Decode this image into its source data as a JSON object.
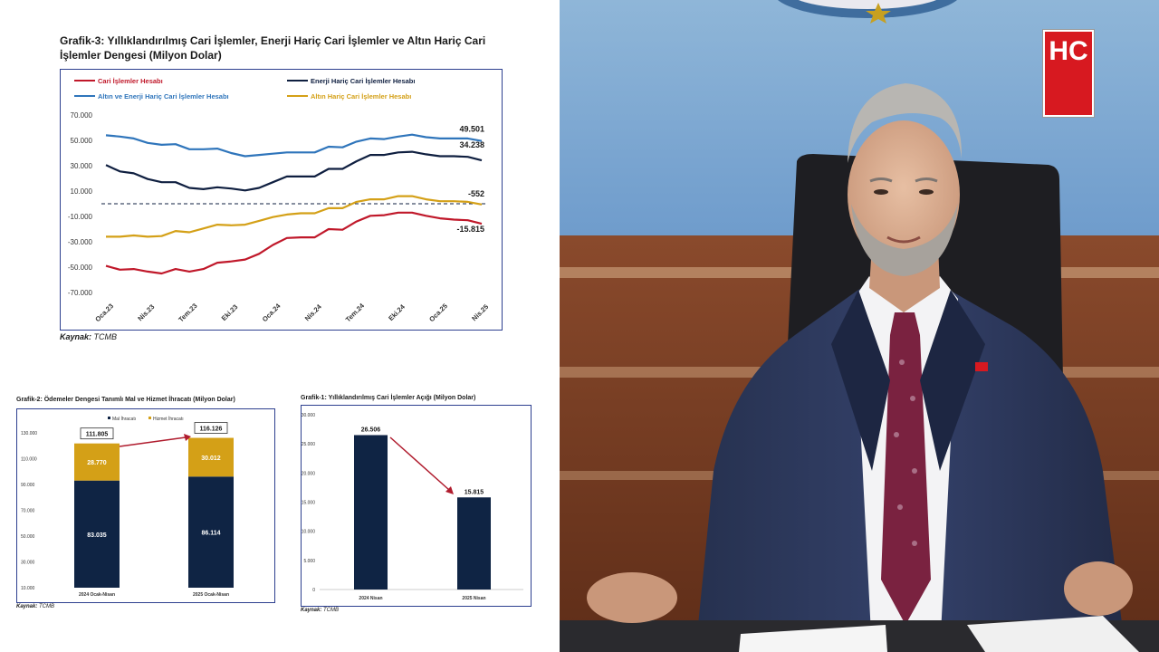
{
  "source_label": "Kaynak:",
  "source_value": "TCMB",
  "logo_text": "HC",
  "chart_data": [
    {
      "type": "line",
      "title": "Grafik-3: Yıllıklandırılmış Cari İşlemler, Enerji Hariç Cari İşlemler ve Altın Hariç Cari İşlemler Dengesi (Milyon Dolar)",
      "x_tick_labels": [
        "Oca.23",
        "Nis.23",
        "Tem.23",
        "Eki.23",
        "Oca.24",
        "Nis.24",
        "Tem.24",
        "Eki.24",
        "Oca.25",
        "Nis.25"
      ],
      "y_tick_labels": [
        "70.000",
        "50.000",
        "30.000",
        "10.000",
        "-10.000",
        "-30.000",
        "-50.000",
        "-70.000"
      ],
      "ylim": [
        -70000,
        70000
      ],
      "legend_position": "top",
      "series": [
        {
          "name": "Cari İşlemler Hesabı",
          "color": "#c0182a",
          "values": [
            -49000,
            -52000,
            -51500,
            -53500,
            -55000,
            -51500,
            -53500,
            -51500,
            -46500,
            -45500,
            -44000,
            -39500,
            -32500,
            -27000,
            -26500,
            -26500,
            -20000,
            -20500,
            -14000,
            -9500,
            -9000,
            -7000,
            -7000,
            -9500,
            -11500,
            -12500,
            -13000,
            -15815
          ],
          "end_label": "-15.815"
        },
        {
          "name": "Enerji Hariç Cari İşlemler Hesabı",
          "color": "#0f1f40",
          "values": [
            30500,
            25500,
            24000,
            19500,
            17000,
            17000,
            12500,
            11500,
            13000,
            12000,
            10500,
            12500,
            17000,
            21500,
            21500,
            21500,
            27500,
            27500,
            33500,
            38500,
            38500,
            40500,
            41000,
            39000,
            37500,
            37500,
            37000,
            34238
          ],
          "end_label": "34.238"
        },
        {
          "name": "Altın ve Enerji Hariç Cari İşlemler Hesabı",
          "color": "#2f75bb",
          "values": [
            54000,
            53000,
            51500,
            48000,
            46500,
            47000,
            43000,
            43000,
            43500,
            40000,
            37500,
            38500,
            39500,
            40500,
            40500,
            40500,
            45000,
            44500,
            49000,
            51500,
            51000,
            53000,
            54500,
            52500,
            51500,
            51500,
            51500,
            49501
          ],
          "end_label": "49.501"
        },
        {
          "name": "Altın Hariç Cari İşlemler Hesabı",
          "color": "#d4a017",
          "values": [
            -26000,
            -26000,
            -25000,
            -26000,
            -25500,
            -21500,
            -22500,
            -19500,
            -16500,
            -17000,
            -16500,
            -13500,
            -10500,
            -8500,
            -7500,
            -7500,
            -3500,
            -3500,
            1500,
            3500,
            3500,
            6000,
            6000,
            3500,
            2000,
            2000,
            1500,
            -552
          ],
          "end_label": "-552"
        }
      ]
    },
    {
      "type": "bar",
      "title": "Grafik-2: Ödemeler Dengesi Tanımlı Mal ve Hizmet İhracatı (Milyon Dolar)",
      "categories": [
        "2024 Ocak-Nisan",
        "2025 Ocak-Nisan"
      ],
      "y_tick_labels": [
        "130.000",
        "110.000",
        "90.000",
        "70.000",
        "50.000",
        "30.000",
        "10.000"
      ],
      "ylim": [
        10000,
        130000
      ],
      "legend_position": "top",
      "series": [
        {
          "name": "Mal İhracatı",
          "color": "#0f2444",
          "values": [
            83035,
            86114
          ],
          "labels": [
            "83.035",
            "86.114"
          ]
        },
        {
          "name": "Hizmet İhracatı",
          "color": "#d4a017",
          "values": [
            28770,
            30012
          ],
          "labels": [
            "28.770",
            "30.012"
          ]
        }
      ],
      "totals": [
        111805,
        116126
      ],
      "total_labels": [
        "111.805",
        "116.126"
      ]
    },
    {
      "type": "bar",
      "title": "Grafik-1: Yıllıklandırılmış Cari İşlemler Açığı (Milyon Dolar)",
      "categories": [
        "2024 Nisan",
        "2025 Nisan"
      ],
      "y_tick_labels": [
        "30.000",
        "25.000",
        "20.000",
        "15.000",
        "10.000",
        "5.000",
        "0"
      ],
      "ylim": [
        0,
        30000
      ],
      "color": "#0f2444",
      "values": [
        26506,
        15815
      ],
      "value_labels": [
        "26.506",
        "15.815"
      ]
    }
  ]
}
